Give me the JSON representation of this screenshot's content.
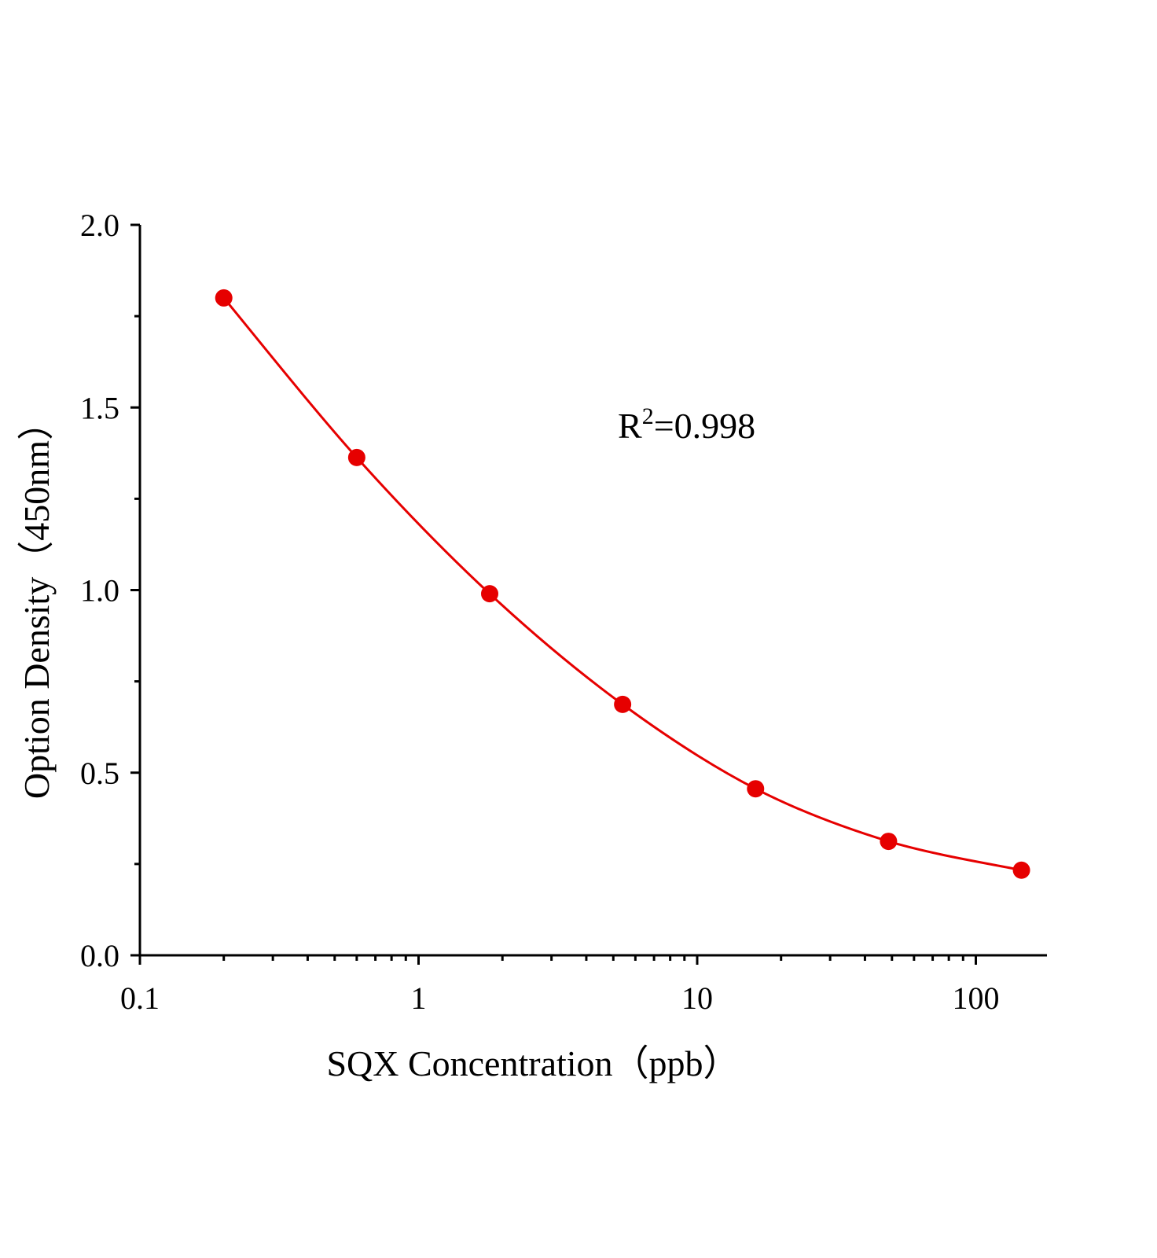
{
  "chart_data": {
    "type": "line",
    "x_label": "SQX Concentration（ppb）",
    "y_label": "Option Density（450nm）",
    "annotation": {
      "base": "R",
      "superscript": "2",
      "text": "=0.998"
    },
    "x": [
      0.2,
      0.6,
      1.8,
      5.4,
      16.2,
      48.6,
      145.8
    ],
    "series": [
      {
        "color": "#e60000",
        "values": [
          1.8,
          1.363,
          0.99,
          0.687,
          0.456,
          0.312,
          0.233
        ]
      }
    ],
    "x_log_scale": true,
    "xlim": [
      0.1,
      180
    ],
    "xticks": [
      0.1,
      1,
      10,
      100
    ],
    "ylim": [
      0,
      2
    ],
    "yticks": [
      {
        "value": 0,
        "label": "0.0"
      },
      {
        "value": 0.5,
        "label": "0.5"
      },
      {
        "value": 1,
        "label": "1.0"
      },
      {
        "value": 1.5,
        "label": "1.5"
      },
      {
        "value": 2,
        "label": "2.0"
      }
    ],
    "grid": false
  }
}
